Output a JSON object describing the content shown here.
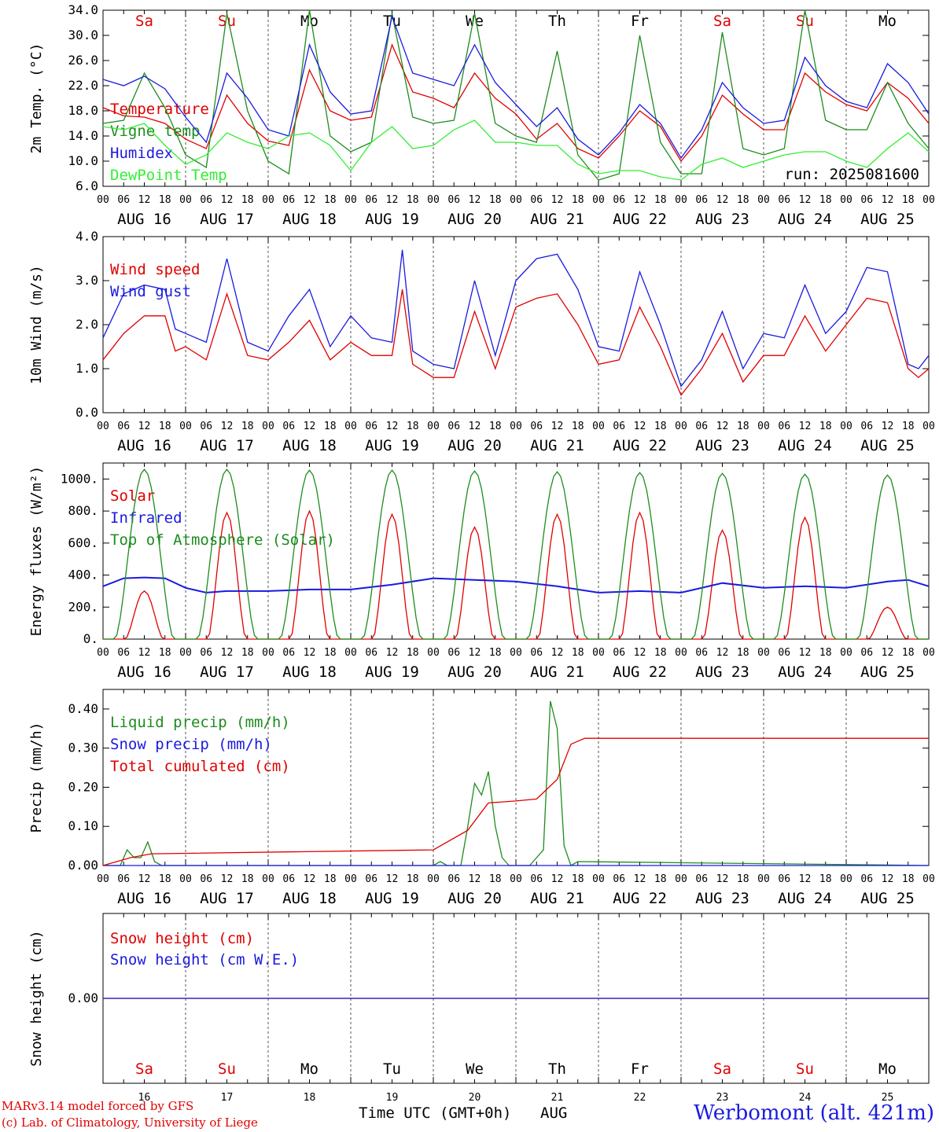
{
  "chart_data": [
    {
      "type": "line",
      "ylabel": "2m Temp. (°C)",
      "ylim": [
        6,
        34
      ],
      "yticks": [
        "6.0",
        "10.0",
        "14.0",
        "18.0",
        "22.0",
        "26.0",
        "30.0",
        "34.0"
      ],
      "day_labels": [
        {
          "label": "Sa",
          "color": "#e00000"
        },
        {
          "label": "Su",
          "color": "#e00000"
        },
        {
          "label": "Mo",
          "color": "#000000"
        },
        {
          "label": "Tu",
          "color": "#000000"
        },
        {
          "label": "We",
          "color": "#000000"
        },
        {
          "label": "Th",
          "color": "#000000"
        },
        {
          "label": "Fr",
          "color": "#000000"
        },
        {
          "label": "Sa",
          "color": "#e00000"
        },
        {
          "label": "Su",
          "color": "#e00000"
        },
        {
          "label": "Mo",
          "color": "#000000"
        }
      ],
      "annotation": "run: 2025081600",
      "series": [
        {
          "name": "Temperature",
          "color": "#e00000",
          "t": [
            0,
            6,
            12,
            18,
            24,
            30,
            36,
            42,
            48,
            54,
            60,
            66,
            72,
            78,
            84,
            90,
            96,
            102,
            108,
            114,
            120,
            126,
            132,
            138,
            144,
            150,
            156,
            162,
            168,
            174,
            180,
            186,
            192,
            198,
            204,
            210,
            216,
            222,
            228,
            234,
            240
          ],
          "values": [
            18.5,
            17.2,
            17.0,
            16.0,
            13.5,
            12.0,
            20.5,
            16.0,
            13.2,
            12.5,
            24.5,
            18.0,
            16.5,
            17.0,
            28.5,
            21.0,
            20.0,
            18.5,
            24.0,
            20.0,
            17.5,
            13.5,
            16.0,
            12.0,
            10.5,
            14.0,
            18.0,
            15.5,
            10.0,
            14.0,
            20.5,
            17.5,
            15.0,
            15.0,
            24.0,
            21.0,
            19.0,
            18.0,
            22.5,
            20.0,
            16.0
          ]
        },
        {
          "name": "Vigne temp",
          "color": "#1e8c1e",
          "t": [
            0,
            6,
            12,
            18,
            24,
            30,
            36,
            42,
            48,
            54,
            60,
            66,
            72,
            78,
            84,
            90,
            96,
            102,
            108,
            114,
            120,
            126,
            132,
            138,
            144,
            150,
            156,
            162,
            168,
            174,
            180,
            186,
            192,
            198,
            204,
            210,
            216,
            222,
            228,
            234,
            240
          ],
          "values": [
            16.0,
            16.5,
            24.0,
            18.5,
            11.0,
            9.0,
            33.5,
            18.0,
            10.0,
            8.0,
            34.0,
            14.0,
            11.5,
            13.0,
            33.5,
            17.0,
            16.0,
            16.5,
            33.5,
            16.0,
            14.0,
            13.0,
            27.5,
            11.0,
            7.0,
            8.0,
            30.0,
            13.0,
            8.0,
            8.0,
            30.5,
            12.0,
            11.0,
            12.0,
            34.0,
            16.5,
            15.0,
            15.0,
            22.5,
            16.0,
            12.0
          ]
        },
        {
          "name": "Humidex",
          "color": "#1a1ae0",
          "t": [
            0,
            6,
            12,
            18,
            24,
            30,
            36,
            42,
            48,
            54,
            60,
            66,
            72,
            78,
            84,
            90,
            96,
            102,
            108,
            114,
            120,
            126,
            132,
            138,
            144,
            150,
            156,
            162,
            168,
            174,
            180,
            186,
            192,
            198,
            204,
            210,
            216,
            222,
            228,
            234,
            240
          ],
          "values": [
            23.0,
            22.0,
            23.5,
            21.5,
            17.0,
            13.0,
            24.0,
            20.0,
            15.0,
            14.0,
            28.5,
            21.0,
            17.5,
            18.0,
            33.0,
            24.0,
            23.0,
            22.0,
            28.5,
            22.5,
            19.0,
            15.5,
            18.5,
            13.5,
            11.0,
            14.5,
            19.0,
            16.0,
            10.5,
            15.0,
            22.5,
            18.5,
            16.0,
            16.5,
            26.5,
            22.0,
            19.5,
            18.5,
            25.5,
            22.5,
            17.5
          ]
        },
        {
          "name": "DewPoint Temp",
          "color": "#33ee33",
          "t": [
            0,
            6,
            12,
            18,
            24,
            30,
            36,
            42,
            48,
            54,
            60,
            66,
            72,
            78,
            84,
            90,
            96,
            102,
            108,
            114,
            120,
            126,
            132,
            138,
            144,
            150,
            156,
            162,
            168,
            174,
            180,
            186,
            192,
            198,
            204,
            210,
            216,
            222,
            228,
            234,
            240
          ],
          "values": [
            15.5,
            15.0,
            16.0,
            12.5,
            9.5,
            11.0,
            14.5,
            13.0,
            12.0,
            14.0,
            14.5,
            12.5,
            8.5,
            13.0,
            15.5,
            12.0,
            12.5,
            15.0,
            16.5,
            13.0,
            13.0,
            12.5,
            12.5,
            9.5,
            8.0,
            8.5,
            8.5,
            7.5,
            7.0,
            9.5,
            10.5,
            9.0,
            10.0,
            11.0,
            11.5,
            11.5,
            10.0,
            9.0,
            12.0,
            14.5,
            11.5
          ]
        }
      ]
    },
    {
      "type": "line",
      "ylabel": "10m Wind (m/s)",
      "ylim": [
        0,
        4
      ],
      "yticks": [
        "0.0",
        "1.0",
        "2.0",
        "3.0",
        "4.0"
      ],
      "series": [
        {
          "name": "Wind speed",
          "color": "#e00000",
          "t": [
            0,
            6,
            12,
            18,
            21,
            24,
            30,
            36,
            42,
            48,
            54,
            60,
            66,
            72,
            78,
            84,
            87,
            90,
            96,
            102,
            108,
            114,
            120,
            126,
            132,
            138,
            144,
            150,
            156,
            162,
            168,
            174,
            180,
            186,
            192,
            198,
            204,
            210,
            216,
            222,
            228,
            234,
            237,
            240
          ],
          "values": [
            1.2,
            1.8,
            2.2,
            2.2,
            1.4,
            1.5,
            1.2,
            2.7,
            1.3,
            1.2,
            1.6,
            2.1,
            1.2,
            1.6,
            1.3,
            1.3,
            2.8,
            1.1,
            0.8,
            0.8,
            2.3,
            1.0,
            2.4,
            2.6,
            2.7,
            2.0,
            1.1,
            1.2,
            2.4,
            1.5,
            0.4,
            1.0,
            1.8,
            0.7,
            1.3,
            1.3,
            2.2,
            1.4,
            2.0,
            2.6,
            2.5,
            1.0,
            0.8,
            1.0
          ]
        },
        {
          "name": "Wind gust",
          "color": "#1a1ae0",
          "t": [
            0,
            6,
            12,
            18,
            21,
            24,
            30,
            36,
            42,
            48,
            54,
            60,
            66,
            72,
            78,
            84,
            87,
            90,
            96,
            102,
            108,
            114,
            120,
            126,
            132,
            138,
            144,
            150,
            156,
            162,
            168,
            174,
            180,
            186,
            192,
            198,
            204,
            210,
            216,
            222,
            228,
            234,
            237,
            240
          ],
          "values": [
            1.7,
            2.7,
            2.9,
            2.8,
            1.9,
            1.8,
            1.6,
            3.5,
            1.6,
            1.4,
            2.2,
            2.8,
            1.5,
            2.2,
            1.7,
            1.6,
            3.7,
            1.4,
            1.1,
            1.0,
            3.0,
            1.3,
            3.0,
            3.5,
            3.6,
            2.8,
            1.5,
            1.4,
            3.2,
            2.0,
            0.6,
            1.2,
            2.3,
            1.0,
            1.8,
            1.7,
            2.9,
            1.8,
            2.3,
            3.3,
            3.2,
            1.1,
            1.0,
            1.3
          ]
        }
      ]
    },
    {
      "type": "line",
      "ylabel": "Energy fluxes (W/m²)",
      "ylim": [
        0,
        1100
      ],
      "yticks": [
        "0.",
        "200.",
        "400.",
        "600.",
        "800.",
        "1000."
      ],
      "series": [
        {
          "name": "Solar",
          "color": "#e00000",
          "peaks": [
            300,
            790,
            800,
            780,
            700,
            780,
            790,
            680,
            760,
            200
          ]
        },
        {
          "name": "Infrared",
          "color": "#1a1ae0",
          "t": [
            0,
            6,
            12,
            18,
            24,
            30,
            36,
            48,
            60,
            72,
            84,
            96,
            108,
            120,
            132,
            144,
            156,
            168,
            180,
            192,
            204,
            216,
            228,
            234,
            240
          ],
          "values": [
            330,
            380,
            385,
            380,
            320,
            290,
            300,
            300,
            310,
            310,
            340,
            380,
            370,
            360,
            330,
            290,
            300,
            290,
            350,
            320,
            330,
            320,
            360,
            370,
            330
          ]
        },
        {
          "name": "Top of Atmosphere (Solar)",
          "color": "#1e8c1e",
          "peaks": [
            1060,
            1060,
            1055,
            1055,
            1050,
            1045,
            1040,
            1035,
            1030,
            1025
          ]
        }
      ]
    },
    {
      "type": "line",
      "ylabel": "Precip (mm/h)",
      "ylim": [
        0,
        0.45
      ],
      "yticks": [
        "0.00",
        "0.10",
        "0.20",
        "0.30",
        "0.40"
      ],
      "series": [
        {
          "name": "Liquid precip (mm/h)",
          "color": "#1e8c1e",
          "t": [
            0,
            5,
            7,
            9,
            11,
            13,
            15,
            17,
            96,
            98,
            100,
            102,
            104,
            106,
            108,
            110,
            112,
            114,
            116,
            118,
            120,
            124,
            126,
            128,
            130,
            132,
            134,
            136,
            138,
            240
          ],
          "values": [
            0,
            0,
            0.04,
            0.02,
            0.02,
            0.06,
            0.01,
            0,
            0,
            0.01,
            0,
            0,
            0,
            0.1,
            0.21,
            0.18,
            0.24,
            0.1,
            0.02,
            0,
            0,
            0,
            0.02,
            0.04,
            0.42,
            0.35,
            0.05,
            0,
            0.01,
            0
          ]
        },
        {
          "name": "Snow precip (mm/h)",
          "color": "#1a1ae0",
          "t": [
            0,
            240
          ],
          "values": [
            0,
            0
          ]
        },
        {
          "name": "Total cumulated (cm)",
          "color": "#e00000",
          "t": [
            0,
            8,
            14,
            96,
            106,
            112,
            120,
            126,
            132,
            136,
            140,
            240
          ],
          "values": [
            0,
            0.02,
            0.03,
            0.04,
            0.09,
            0.16,
            0.165,
            0.17,
            0.22,
            0.31,
            0.325,
            0.325
          ]
        }
      ]
    },
    {
      "type": "line",
      "ylabel": "Snow height (cm)",
      "ylim": [
        -1,
        1
      ],
      "yticks": [
        "0.00"
      ],
      "series": [
        {
          "name": "Snow height (cm)",
          "color": "#e00000",
          "t": [
            0,
            240
          ],
          "values": [
            0,
            0
          ]
        },
        {
          "name": "Snow height (cm W.E.)",
          "color": "#1a1ae0",
          "t": [
            0,
            240
          ],
          "values": [
            0,
            0
          ]
        }
      ],
      "day_labels": [
        {
          "label": "Sa",
          "color": "#e00000"
        },
        {
          "label": "Su",
          "color": "#e00000"
        },
        {
          "label": "Mo",
          "color": "#000000"
        },
        {
          "label": "Tu",
          "color": "#000000"
        },
        {
          "label": "We",
          "color": "#000000"
        },
        {
          "label": "Th",
          "color": "#000000"
        },
        {
          "label": "Fr",
          "color": "#000000"
        },
        {
          "label": "Sa",
          "color": "#e00000"
        },
        {
          "label": "Su",
          "color": "#e00000"
        },
        {
          "label": "Mo",
          "color": "#000000"
        }
      ],
      "day_numbers": [
        "16",
        "17",
        "18",
        "19",
        "20",
        "21",
        "22",
        "23",
        "24",
        "25"
      ]
    }
  ],
  "x_hour_ticks": [
    "00",
    "06",
    "12",
    "18"
  ],
  "x_final_tick": "00",
  "date_labels": [
    "AUG 16",
    "AUG 17",
    "AUG 18",
    "AUG 19",
    "AUG 20",
    "AUG 21",
    "AUG 22",
    "AUG 23",
    "AUG 24",
    "AUG 25"
  ],
  "footer": {
    "model_line": "MARv3.14 model forced by GFS",
    "copyright_line": "(c) Lab. of Climatology, University of Liege",
    "xlabel": "Time UTC (GMT+0h)",
    "month": "AUG",
    "station": "Werbomont (alt. 421m)"
  }
}
